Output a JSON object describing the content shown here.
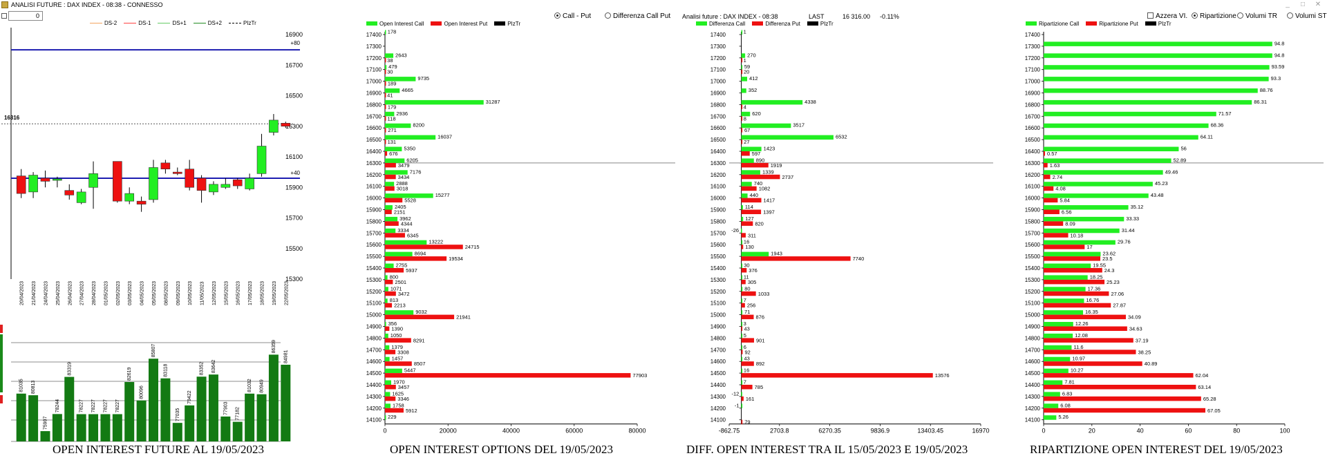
{
  "window": {
    "title": "ANALISI FUTURE : DAX INDEX - 08:38 - CONNESSO",
    "min_label": "_",
    "max_label": "□",
    "close_label": "✕"
  },
  "top_control": {
    "value": "0"
  },
  "future_panel": {
    "caption": "OPEN INTEREST FUTURE AL 19/05/2023",
    "legend": [
      "DS-2",
      "DS-1",
      "DS+1",
      "DS+2",
      "PIzTr"
    ],
    "legend_colors": [
      "#f4a460",
      "#ff4040",
      "#66cc66",
      "#228b22",
      "#000000"
    ],
    "price_ticks": [
      "16900",
      "16700",
      "16500",
      "16300",
      "16100",
      "15900",
      "15700",
      "15500",
      "15300"
    ],
    "ymin": 15300,
    "ymax": 16900,
    "current_price_label": "16316",
    "current_price": 16316,
    "upper_line": 16800,
    "upper_line_label": "+80",
    "lower_line": 15960,
    "lower_line_label": "+40",
    "dates": [
      "20/04/2023",
      "21/04/2023",
      "24/04/2023",
      "25/04/2023",
      "26/04/2023",
      "27/04/2023",
      "28/04/2023",
      "01/05/2023",
      "02/05/2023",
      "03/05/2023",
      "04/05/2023",
      "05/05/2023",
      "08/05/2023",
      "09/05/2023",
      "10/05/2023",
      "11/05/2023",
      "12/05/2023",
      "15/05/2023",
      "16/05/2023",
      "17/05/2023",
      "18/05/2023",
      "19/05/2023",
      "22/05/2023"
    ],
    "candles": [
      {
        "o": 15975,
        "c": 15860,
        "h": 16020,
        "l": 15830
      },
      {
        "o": 15870,
        "c": 15980,
        "h": 16000,
        "l": 15830
      },
      {
        "o": 15960,
        "c": 15940,
        "h": 16010,
        "l": 15900
      },
      {
        "o": 15950,
        "c": 15955,
        "h": 15970,
        "l": 15900
      },
      {
        "o": 15880,
        "c": 15850,
        "h": 15920,
        "l": 15820
      },
      {
        "o": 15800,
        "c": 15870,
        "h": 15890,
        "l": 15790
      },
      {
        "o": 15900,
        "c": 15990,
        "h": 16070,
        "l": 15760
      },
      null,
      {
        "o": 16070,
        "c": 15810,
        "h": 16070,
        "l": 15800
      },
      {
        "o": 15810,
        "c": 15860,
        "h": 15900,
        "l": 15790
      },
      {
        "o": 15810,
        "c": 15790,
        "h": 15840,
        "l": 15740
      },
      {
        "o": 15820,
        "c": 16030,
        "h": 16080,
        "l": 15800
      },
      {
        "o": 16060,
        "c": 16020,
        "h": 16080,
        "l": 15990
      },
      {
        "o": 16000,
        "c": 15990,
        "h": 16030,
        "l": 15980
      },
      {
        "o": 16020,
        "c": 15900,
        "h": 16080,
        "l": 15880
      },
      {
        "o": 15960,
        "c": 15880,
        "h": 15980,
        "l": 15800
      },
      {
        "o": 15870,
        "c": 15920,
        "h": 15940,
        "l": 15850
      },
      {
        "o": 15900,
        "c": 15920,
        "h": 15960,
        "l": 15890
      },
      {
        "o": 15950,
        "c": 15910,
        "h": 15960,
        "l": 15890
      },
      {
        "o": 15890,
        "c": 15960,
        "h": 15990,
        "l": 15880
      },
      {
        "o": 15990,
        "c": 16170,
        "h": 16250,
        "l": 15970
      },
      {
        "o": 16260,
        "c": 16340,
        "h": 16380,
        "l": 16240
      },
      {
        "o": 16320,
        "c": 16300,
        "h": 16330,
        "l": 16290
      }
    ],
    "oi_labels": [
      "81035",
      "80813",
      "75907",
      "78244",
      "83319",
      "78227",
      "78227",
      "78227",
      "78227",
      "82619",
      "80096",
      "85807",
      "83118",
      "77035",
      "79422",
      "83352",
      "83642",
      "77903",
      "77182",
      "81032",
      "80949",
      "86359",
      "84981"
    ],
    "oi_values": [
      81035,
      80813,
      75907,
      78244,
      83319,
      78227,
      78227,
      78227,
      78227,
      82619,
      80096,
      85807,
      83118,
      77035,
      79422,
      83352,
      83642,
      77903,
      77182,
      81032,
      80949,
      86359,
      84981
    ]
  },
  "options_panel": {
    "caption": "OPEN INTEREST OPTIONS DEL 19/05/2023",
    "radio": [
      {
        "label": "Call - Put",
        "checked": true
      },
      {
        "label": "Differenza Call Put",
        "checked": false
      }
    ],
    "legend": [
      "Open Interest Call",
      "Open Interest Put",
      "PIzTr"
    ]
  },
  "diff_panel": {
    "caption": "DIFF. OPEN INTEREST TRA IL 15/05/2023 E 19/05/2023",
    "header": {
      "title": "Analisi future : DAX INDEX - 08:38",
      "last_label": "LAST",
      "last_value": "16 316.00",
      "change": "-0.11%"
    },
    "legend": [
      "Differenza Call",
      "Differenza Put",
      "PIzTr"
    ],
    "x_ticks": [
      "-862.75",
      "2703.8",
      "6270.35",
      "9836.9",
      "13403.45",
      "16970"
    ]
  },
  "ratio_panel": {
    "caption": "RIPARTIZIONE OPEN INTEREST DEL 19/05/2023",
    "checkbox": {
      "label": "Azzera VI.",
      "checked": false
    },
    "radio": [
      {
        "label": "Ripartizione",
        "checked": true
      },
      {
        "label": "Volumi TR",
        "checked": false
      },
      {
        "label": "Volumi ST",
        "checked": false
      }
    ],
    "legend": [
      "Ripartizione Call",
      "Ripartizione Put",
      "PIzTr"
    ]
  },
  "chart_data": [
    {
      "type": "bar",
      "title": "OPEN INTEREST FUTURE AL 19/05/2023",
      "categories": [
        "20/04/2023",
        "21/04/2023",
        "24/04/2023",
        "25/04/2023",
        "26/04/2023",
        "27/04/2023",
        "28/04/2023",
        "01/05/2023",
        "02/05/2023",
        "03/05/2023",
        "04/05/2023",
        "05/05/2023",
        "08/05/2023",
        "09/05/2023",
        "10/05/2023",
        "11/05/2023",
        "12/05/2023",
        "15/05/2023",
        "16/05/2023",
        "17/05/2023",
        "18/05/2023",
        "19/05/2023",
        "22/05/2023"
      ],
      "values": [
        81035,
        80813,
        75907,
        78244,
        83319,
        78227,
        78227,
        78227,
        78227,
        82619,
        80096,
        85807,
        83118,
        77035,
        79422,
        83352,
        83642,
        77903,
        77182,
        81032,
        80949,
        86359,
        84981
      ],
      "ylim": [
        74500,
        88000
      ]
    },
    {
      "type": "bar",
      "title": "OPEN INTEREST OPTIONS DEL 19/05/2023",
      "orientation": "horizontal",
      "categories": [
        "17400",
        "17300",
        "17200",
        "17100",
        "17000",
        "16900",
        "16800",
        "16700",
        "16600",
        "16500",
        "16400",
        "16300",
        "16200",
        "16100",
        "16000",
        "15900",
        "15800",
        "15700",
        "15600",
        "15500",
        "15400",
        "15300",
        "15200",
        "15100",
        "15000",
        "14900",
        "14800",
        "14700",
        "14600",
        "14500",
        "14400",
        "14300",
        "14200",
        "14100"
      ],
      "series": [
        {
          "name": "Open Interest Call",
          "color": "#22ee22",
          "values": [
            178,
            null,
            2643,
            479,
            9735,
            4665,
            31287,
            2936,
            8200,
            16037,
            5350,
            6205,
            7176,
            2888,
            15277,
            2405,
            3962,
            3334,
            13222,
            8694,
            2755,
            800,
            1071,
            813,
            9032,
            356,
            1050,
            1379,
            1457,
            5447,
            1970,
            1625,
            1758,
            229
          ],
          "labels": [
            "178",
            "",
            "2643",
            "479",
            "9735",
            "4665",
            "31287",
            "2936",
            "8200",
            "16037",
            "5350",
            "6205",
            "7176",
            "2888",
            "15277",
            "2405",
            "3962",
            "3334",
            "13222",
            "8694",
            "2755",
            "800",
            "1071",
            "813",
            "9032",
            "356",
            "1050",
            "1379",
            "1457",
            "5447",
            "1970",
            "1625",
            "1758",
            "229"
          ]
        },
        {
          "name": "Open Interest Put",
          "color": "#ee1111",
          "values": [
            null,
            null,
            38,
            30,
            189,
            41,
            179,
            118,
            271,
            131,
            676,
            3479,
            3434,
            3018,
            5528,
            2151,
            4344,
            6345,
            24715,
            19534,
            5937,
            2501,
            3472,
            2213,
            21941,
            1390,
            8291,
            3308,
            8507,
            77903,
            3457,
            3346,
            5912,
            null
          ],
          "labels": [
            "",
            "",
            "38",
            "30",
            "189",
            "41",
            "179",
            "118",
            "271",
            "131",
            "676",
            "3479",
            "3434",
            "3018",
            "5528",
            "2151",
            "4344",
            "6345",
            "24715",
            "19534",
            "5937",
            "2501",
            "3472",
            "2213",
            "21941",
            "1390",
            "8291",
            "3308",
            "8507",
            "77903",
            "3457",
            "3346",
            "5912",
            ""
          ]
        }
      ],
      "pivot": "16300",
      "xlim": [
        0,
        80000
      ],
      "x_ticks": [
        "0",
        "20000",
        "40000",
        "60000",
        "80000"
      ]
    },
    {
      "type": "bar",
      "title": "DIFF. OPEN INTEREST TRA IL 15/05/2023 E 19/05/2023",
      "orientation": "horizontal",
      "categories": [
        "17400",
        "17300",
        "17200",
        "17100",
        "17000",
        "16900",
        "16800",
        "16700",
        "16600",
        "16500",
        "16400",
        "16300",
        "16200",
        "16100",
        "16000",
        "15900",
        "15800",
        "15700",
        "15600",
        "15500",
        "15400",
        "15300",
        "15200",
        "15100",
        "15000",
        "14900",
        "14800",
        "14700",
        "14600",
        "14500",
        "14400",
        "14300",
        "14200",
        "14100"
      ],
      "series": [
        {
          "name": "Differenza Call",
          "color": "#22ee22",
          "values": [
            1,
            null,
            270,
            59,
            412,
            352,
            4338,
            620,
            3517,
            6532,
            1423,
            890,
            1339,
            740,
            440,
            114,
            127,
            -26,
            16,
            1943,
            30,
            11,
            80,
            7,
            71,
            3,
            5,
            6,
            43,
            16,
            7,
            -12,
            -1,
            null
          ],
          "labels": [
            "1",
            "",
            "270",
            "59",
            "412",
            "352",
            "4338",
            "620",
            "3517",
            "6532",
            "1423",
            "890",
            "1339",
            "740",
            "440",
            "114",
            "127",
            "-26",
            "16",
            "1943",
            "30",
            "11",
            "80",
            "7",
            "71",
            "3",
            "5",
            "6",
            "43",
            "16",
            "7",
            "-12",
            "-1",
            ""
          ]
        },
        {
          "name": "Differenza Put",
          "color": "#ee1111",
          "values": [
            null,
            null,
            1,
            20,
            null,
            null,
            4,
            8,
            67,
            27,
            597,
            1919,
            2737,
            1082,
            1417,
            1397,
            820,
            311,
            130,
            7740,
            376,
            305,
            1033,
            256,
            876,
            43,
            901,
            92,
            892,
            13576,
            785,
            161,
            null,
            79
          ],
          "labels": [
            "",
            "",
            "1",
            "20",
            "",
            "",
            "4",
            "8",
            "67",
            "27",
            "597",
            "1919",
            "2737",
            "1082",
            "1417",
            "1397",
            "820",
            "311",
            "130",
            "7740",
            "376",
            "305",
            "1033",
            "256",
            "876",
            "43",
            "901",
            "92",
            "892",
            "13576",
            "785",
            "161",
            "",
            "79"
          ]
        }
      ],
      "pivot": "16300",
      "xlim": [
        -862.75,
        16970
      ],
      "x_ticks": [
        "-862.75",
        "2703.8",
        "6270.35",
        "9836.9",
        "13403.45",
        "16970"
      ]
    },
    {
      "type": "bar",
      "title": "RIPARTIZIONE OPEN INTEREST DEL 19/05/2023",
      "orientation": "horizontal",
      "categories": [
        "17400",
        "17300",
        "17200",
        "17100",
        "17000",
        "16900",
        "16800",
        "16700",
        "16600",
        "16500",
        "16400",
        "16300",
        "16200",
        "16100",
        "16000",
        "15900",
        "15800",
        "15700",
        "15600",
        "15500",
        "15400",
        "15300",
        "15200",
        "15100",
        "15000",
        "14900",
        "14800",
        "14700",
        "14600",
        "14500",
        "14400",
        "14300",
        "14200",
        "14100"
      ],
      "series": [
        {
          "name": "Ripartizione Call",
          "color": "#22ee22",
          "values": [
            null,
            94.8,
            94.8,
            93.59,
            93.3,
            88.76,
            86.31,
            71.57,
            68.36,
            64.11,
            56,
            52.89,
            49.46,
            45.23,
            43.48,
            35.12,
            33.33,
            31.44,
            29.76,
            23.62,
            19.55,
            18.25,
            17.36,
            16.76,
            16.35,
            12.26,
            12.08,
            11.6,
            10.97,
            10.27,
            7.81,
            6.83,
            6.08,
            5.26
          ],
          "labels": [
            "",
            "94.8",
            "94.8",
            "93.59",
            "93.3",
            "88.76",
            "86.31",
            "71.57",
            "68.36",
            "64.11",
            "56",
            "52.89",
            "49.46",
            "45.23",
            "43.48",
            "35.12",
            "33.33",
            "31.44",
            "29.76",
            "23.62",
            "19.55",
            "18.25",
            "17.36",
            "16.76",
            "16.35",
            "12.26",
            "12.08",
            "11.6",
            "10.97",
            "10.27",
            "7.81",
            "6.83",
            "6.08",
            "5.26"
          ]
        },
        {
          "name": "Ripartizione Put",
          "color": "#ee1111",
          "values": [
            null,
            null,
            null,
            null,
            null,
            null,
            null,
            null,
            null,
            null,
            0.57,
            1.63,
            2.74,
            4.08,
            5.84,
            6.56,
            8.09,
            10.18,
            17,
            23.5,
            24.3,
            25.23,
            27.06,
            27.87,
            34.09,
            34.63,
            37.19,
            38.25,
            40.89,
            62.04,
            63.14,
            65.28,
            67.05,
            null
          ],
          "labels": [
            "",
            "",
            "",
            "",
            "",
            "",
            "",
            "",
            "",
            "",
            "0.57",
            "1.63",
            "2.74",
            "4.08",
            "5.84",
            "6.56",
            "8.09",
            "10.18",
            "17",
            "23.5",
            "24.3",
            "25.23",
            "27.06",
            "27.87",
            "34.09",
            "34.63",
            "37.19",
            "38.25",
            "40.89",
            "62.04",
            "63.14",
            "65.28",
            "67.05",
            ""
          ]
        }
      ],
      "pivot": "16300",
      "xlim": [
        0,
        100
      ],
      "x_ticks": [
        "0",
        "20",
        "40",
        "60",
        "80",
        "100"
      ]
    }
  ]
}
